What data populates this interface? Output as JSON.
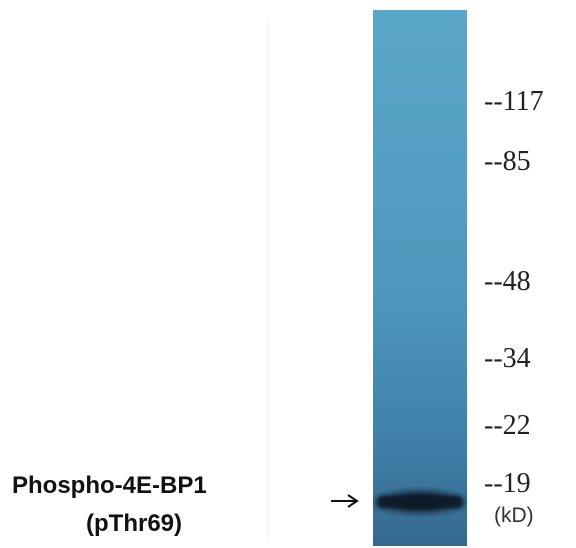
{
  "protein_label": {
    "line1": "Phospho-4E-BP1",
    "line2": "(pThr69)"
  },
  "markers": [
    "--117",
    "--85",
    "--48",
    "--34",
    "--22",
    "--19"
  ],
  "unit_label": "(kD)",
  "colors": {
    "lane": "#4d96bb",
    "band": "#0d1a26",
    "text": "#222222"
  },
  "icons": {
    "arrow": "right-arrow-icon"
  }
}
